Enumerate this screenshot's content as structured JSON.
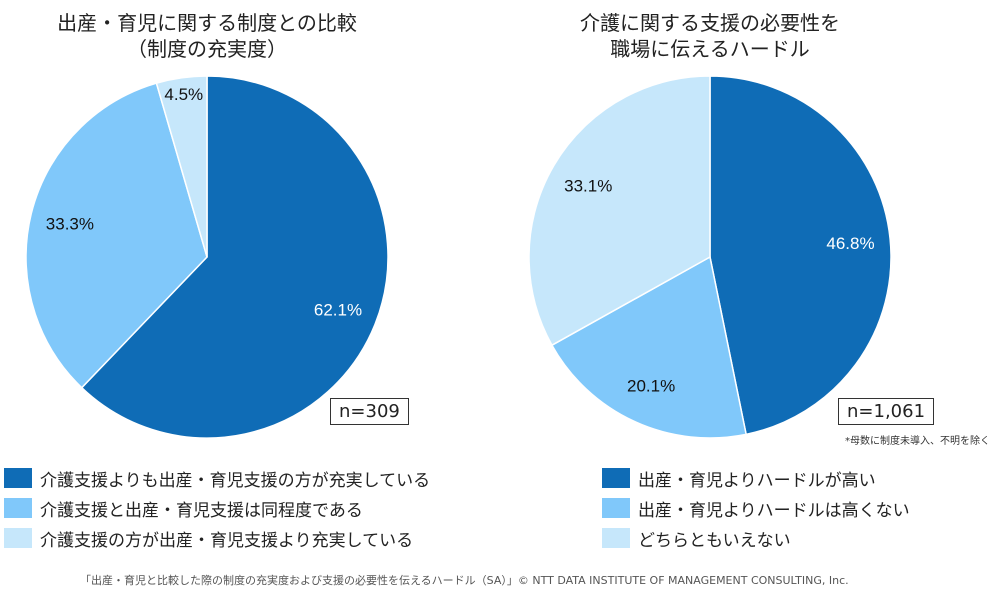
{
  "chart_data": [
    {
      "type": "pie",
      "title_lines": [
        "出産・育児に関する制度との比較",
        "（制度の充実度）"
      ],
      "slices": [
        {
          "label": "介護支援よりも出産・育児支援の方が充実している",
          "value": 62.1,
          "value_label": "62.1%",
          "color": "#0f6cb6",
          "label_color": "#ffffff"
        },
        {
          "label": "介護支援と出産・育児支援は同程度である",
          "value": 33.3,
          "value_label": "33.3%",
          "color": "#80c8fa",
          "label_color": "#111111"
        },
        {
          "label": "介護支援の方が出産・育児支援より充実している",
          "value": 4.5,
          "value_label": "4.5%",
          "color": "#c6e7fb",
          "label_color": "#111111"
        }
      ],
      "n_label": "n=309",
      "legend": "bottom"
    },
    {
      "type": "pie",
      "title_lines": [
        "介護に関する支援の必要性を",
        "職場に伝えるハードル"
      ],
      "slices": [
        {
          "label": "出産・育児よりハードルが高い",
          "value": 46.8,
          "value_label": "46.8%",
          "color": "#0f6cb6",
          "label_color": "#ffffff"
        },
        {
          "label": "出産・育児よりハードルは高くない",
          "value": 20.1,
          "value_label": "20.1%",
          "color": "#80c8fa",
          "label_color": "#111111"
        },
        {
          "label": "どちらともいえない",
          "value": 33.1,
          "value_label": "33.1%",
          "color": "#c6e7fb",
          "label_color": "#111111"
        }
      ],
      "n_label": "n=1,061",
      "note": "*母数に制度未導入、不明を除く",
      "legend": "bottom"
    }
  ],
  "footer": "「出産・育児と比較した際の制度の充実度および支援の必要性を伝えるハードル（SA）」© NTT DATA INSTITUTE OF MANAGEMENT CONSULTING, Inc."
}
